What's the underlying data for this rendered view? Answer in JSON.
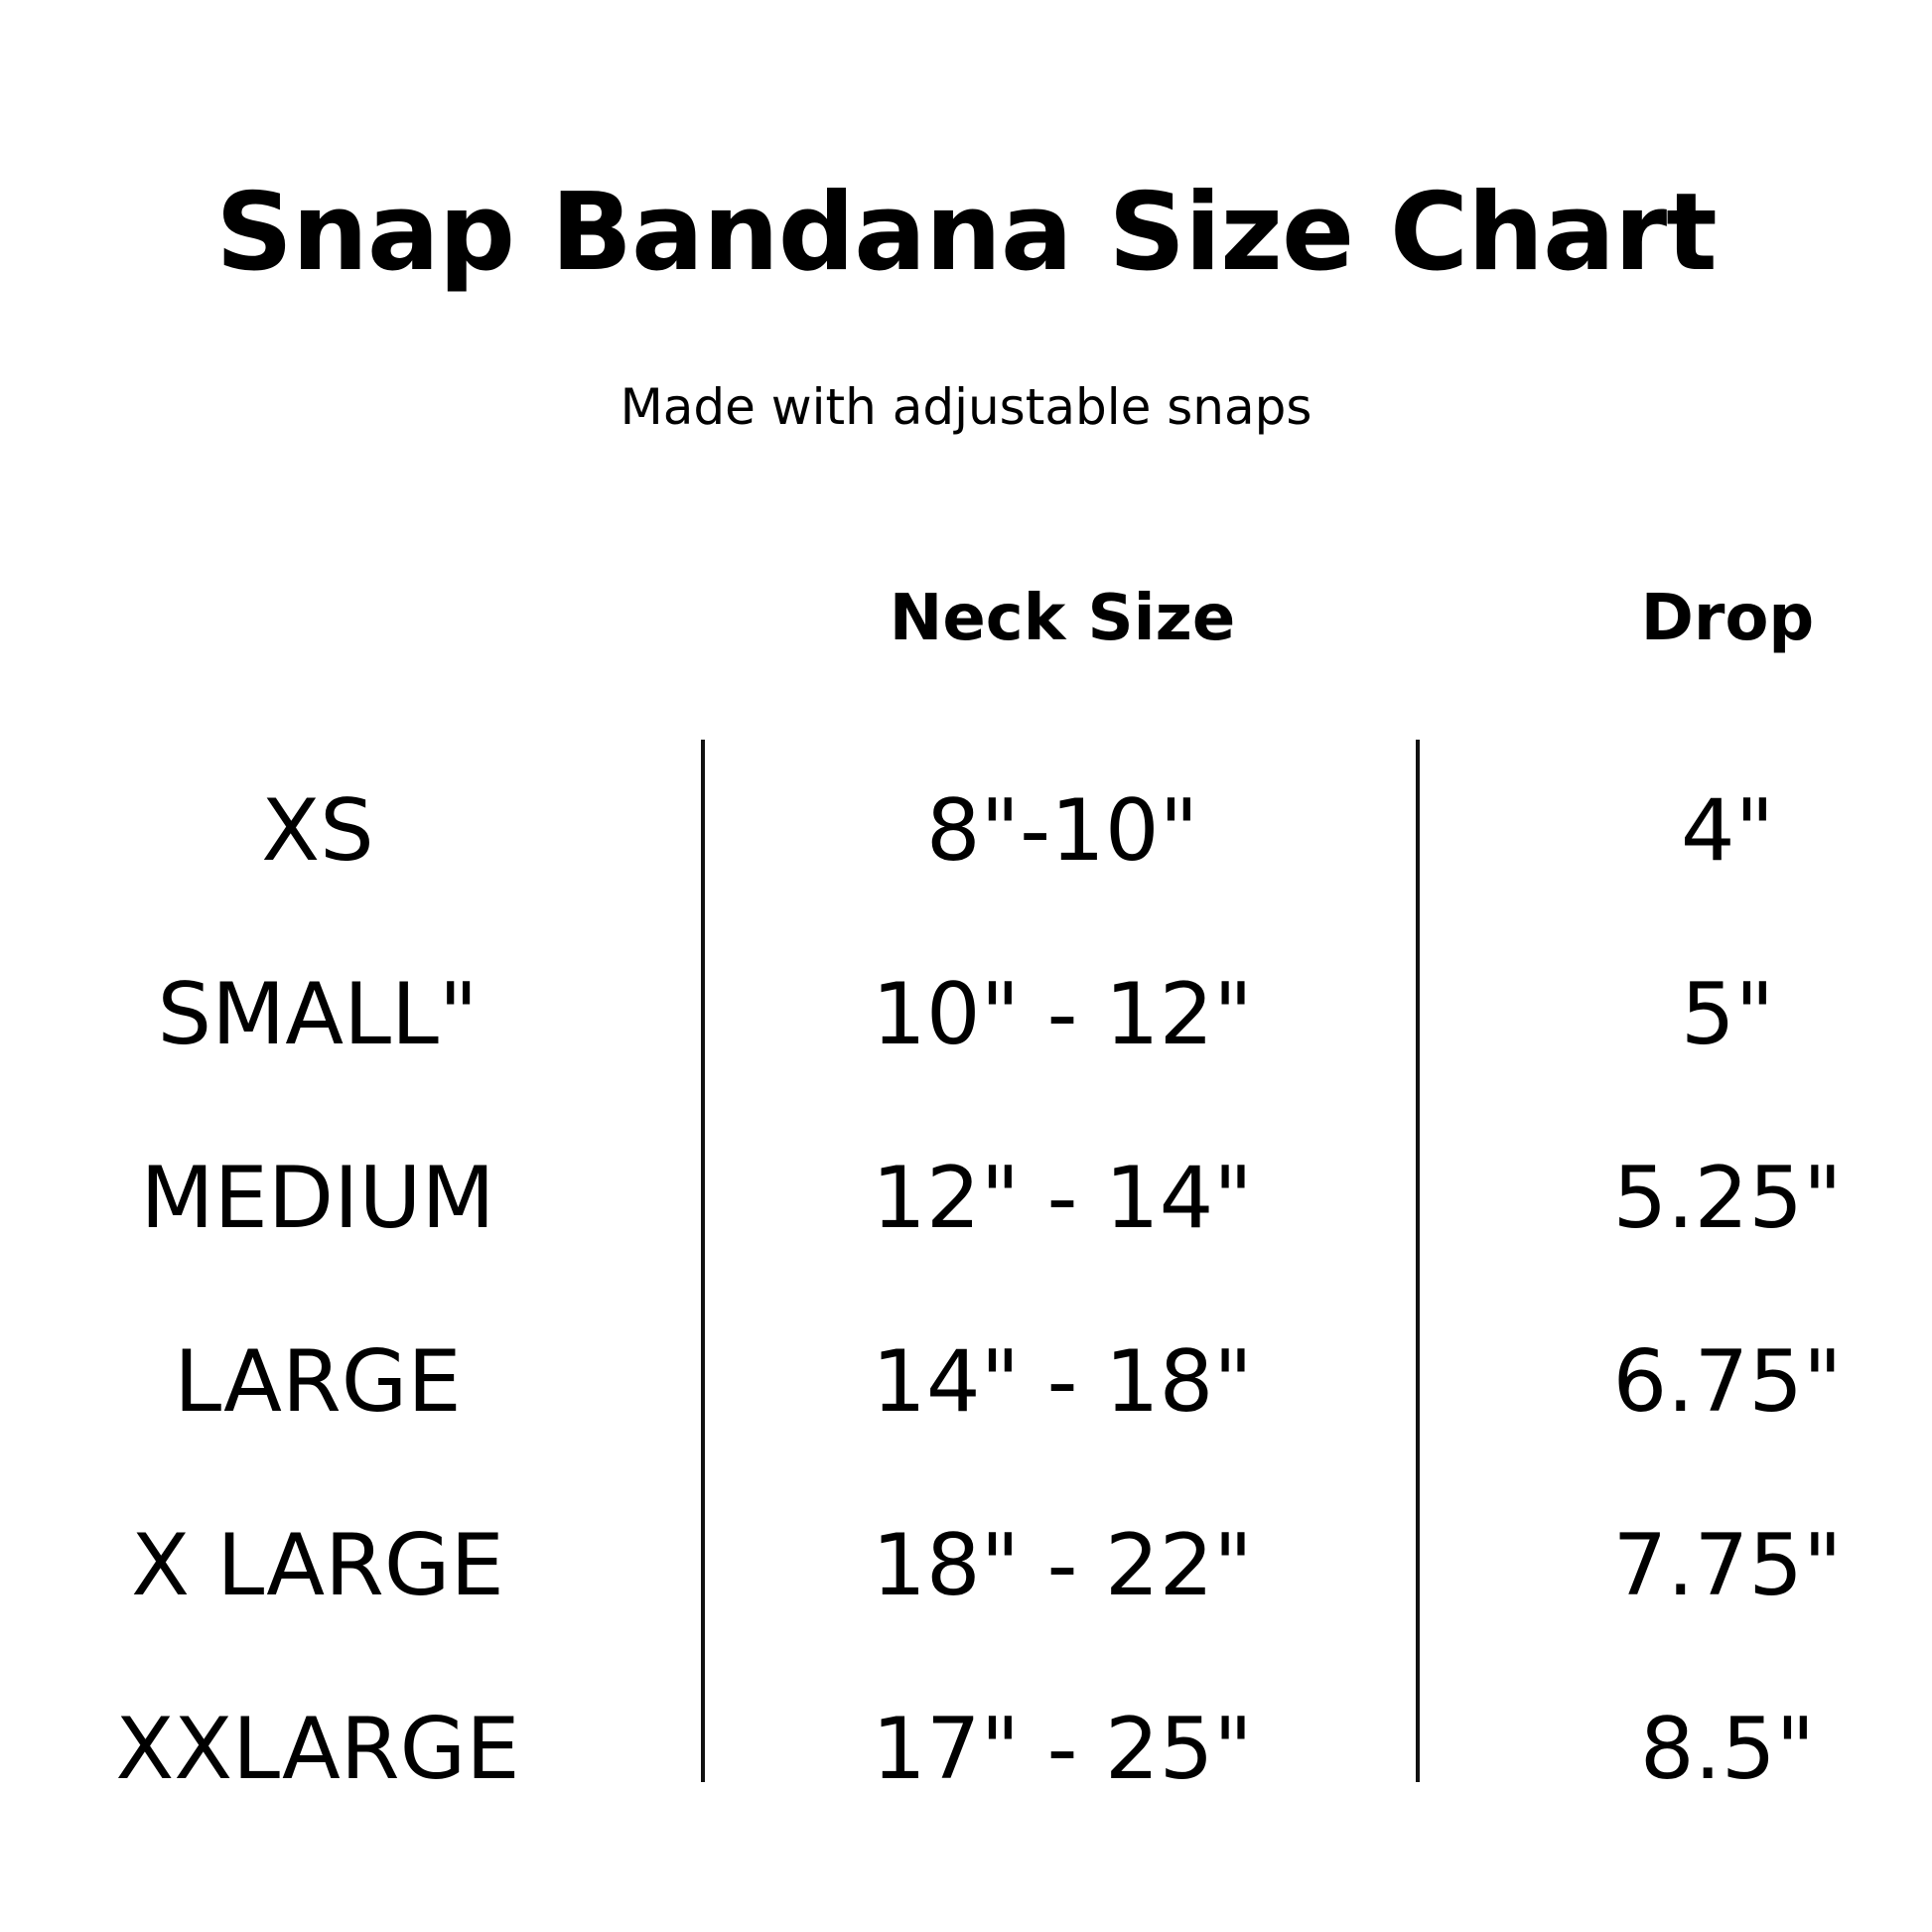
{
  "title": "Snap Bandana Size Chart",
  "subtitle": "Made with adjustable snaps",
  "headers": {
    "size": "",
    "neck": "Neck Size",
    "drop": "Drop"
  },
  "rows": [
    {
      "size": "XS",
      "neck": "8\"-10\"",
      "drop": "4\""
    },
    {
      "size": "SMALL\"",
      "neck": "10\" - 12\"",
      "drop": "5\""
    },
    {
      "size": "MEDIUM",
      "neck": "12\" - 14\"",
      "drop": "5.25\""
    },
    {
      "size": "LARGE",
      "neck": "14\" - 18\"",
      "drop": "6.75\""
    },
    {
      "size": "X LARGE",
      "neck": "18\" - 22\"",
      "drop": "7.75\""
    },
    {
      "size": "XXLARGE",
      "neck": "17\" - 25\"",
      "drop": "8.5\""
    }
  ]
}
